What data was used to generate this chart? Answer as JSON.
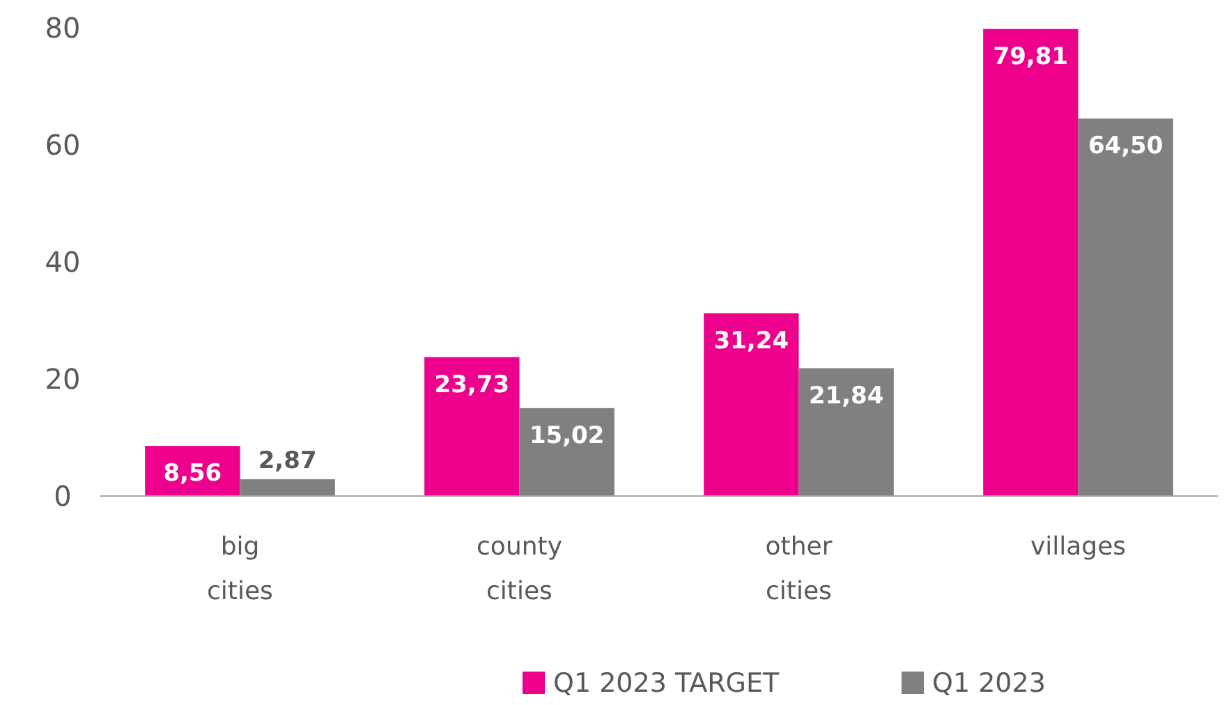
{
  "chart_data": {
    "type": "bar",
    "categories": [
      "big cities",
      "county cities",
      "other cities",
      "villages"
    ],
    "series": [
      {
        "name": "Q1 2023 TARGET",
        "color": "#ec008c",
        "values": [
          8.56,
          23.73,
          31.24,
          79.81
        ],
        "value_labels": [
          "8,56",
          "23,73",
          "31,24",
          "79,81"
        ]
      },
      {
        "name": "Q1 2023",
        "color": "#808080",
        "values": [
          2.87,
          15.02,
          21.84,
          64.5
        ],
        "value_labels": [
          "2,87",
          "15,02",
          "21,84",
          "64,50"
        ]
      }
    ],
    "ylim": [
      0,
      80
    ],
    "yticks": [
      0,
      20,
      40,
      60,
      80
    ],
    "grid": false,
    "legend": "bottom"
  }
}
